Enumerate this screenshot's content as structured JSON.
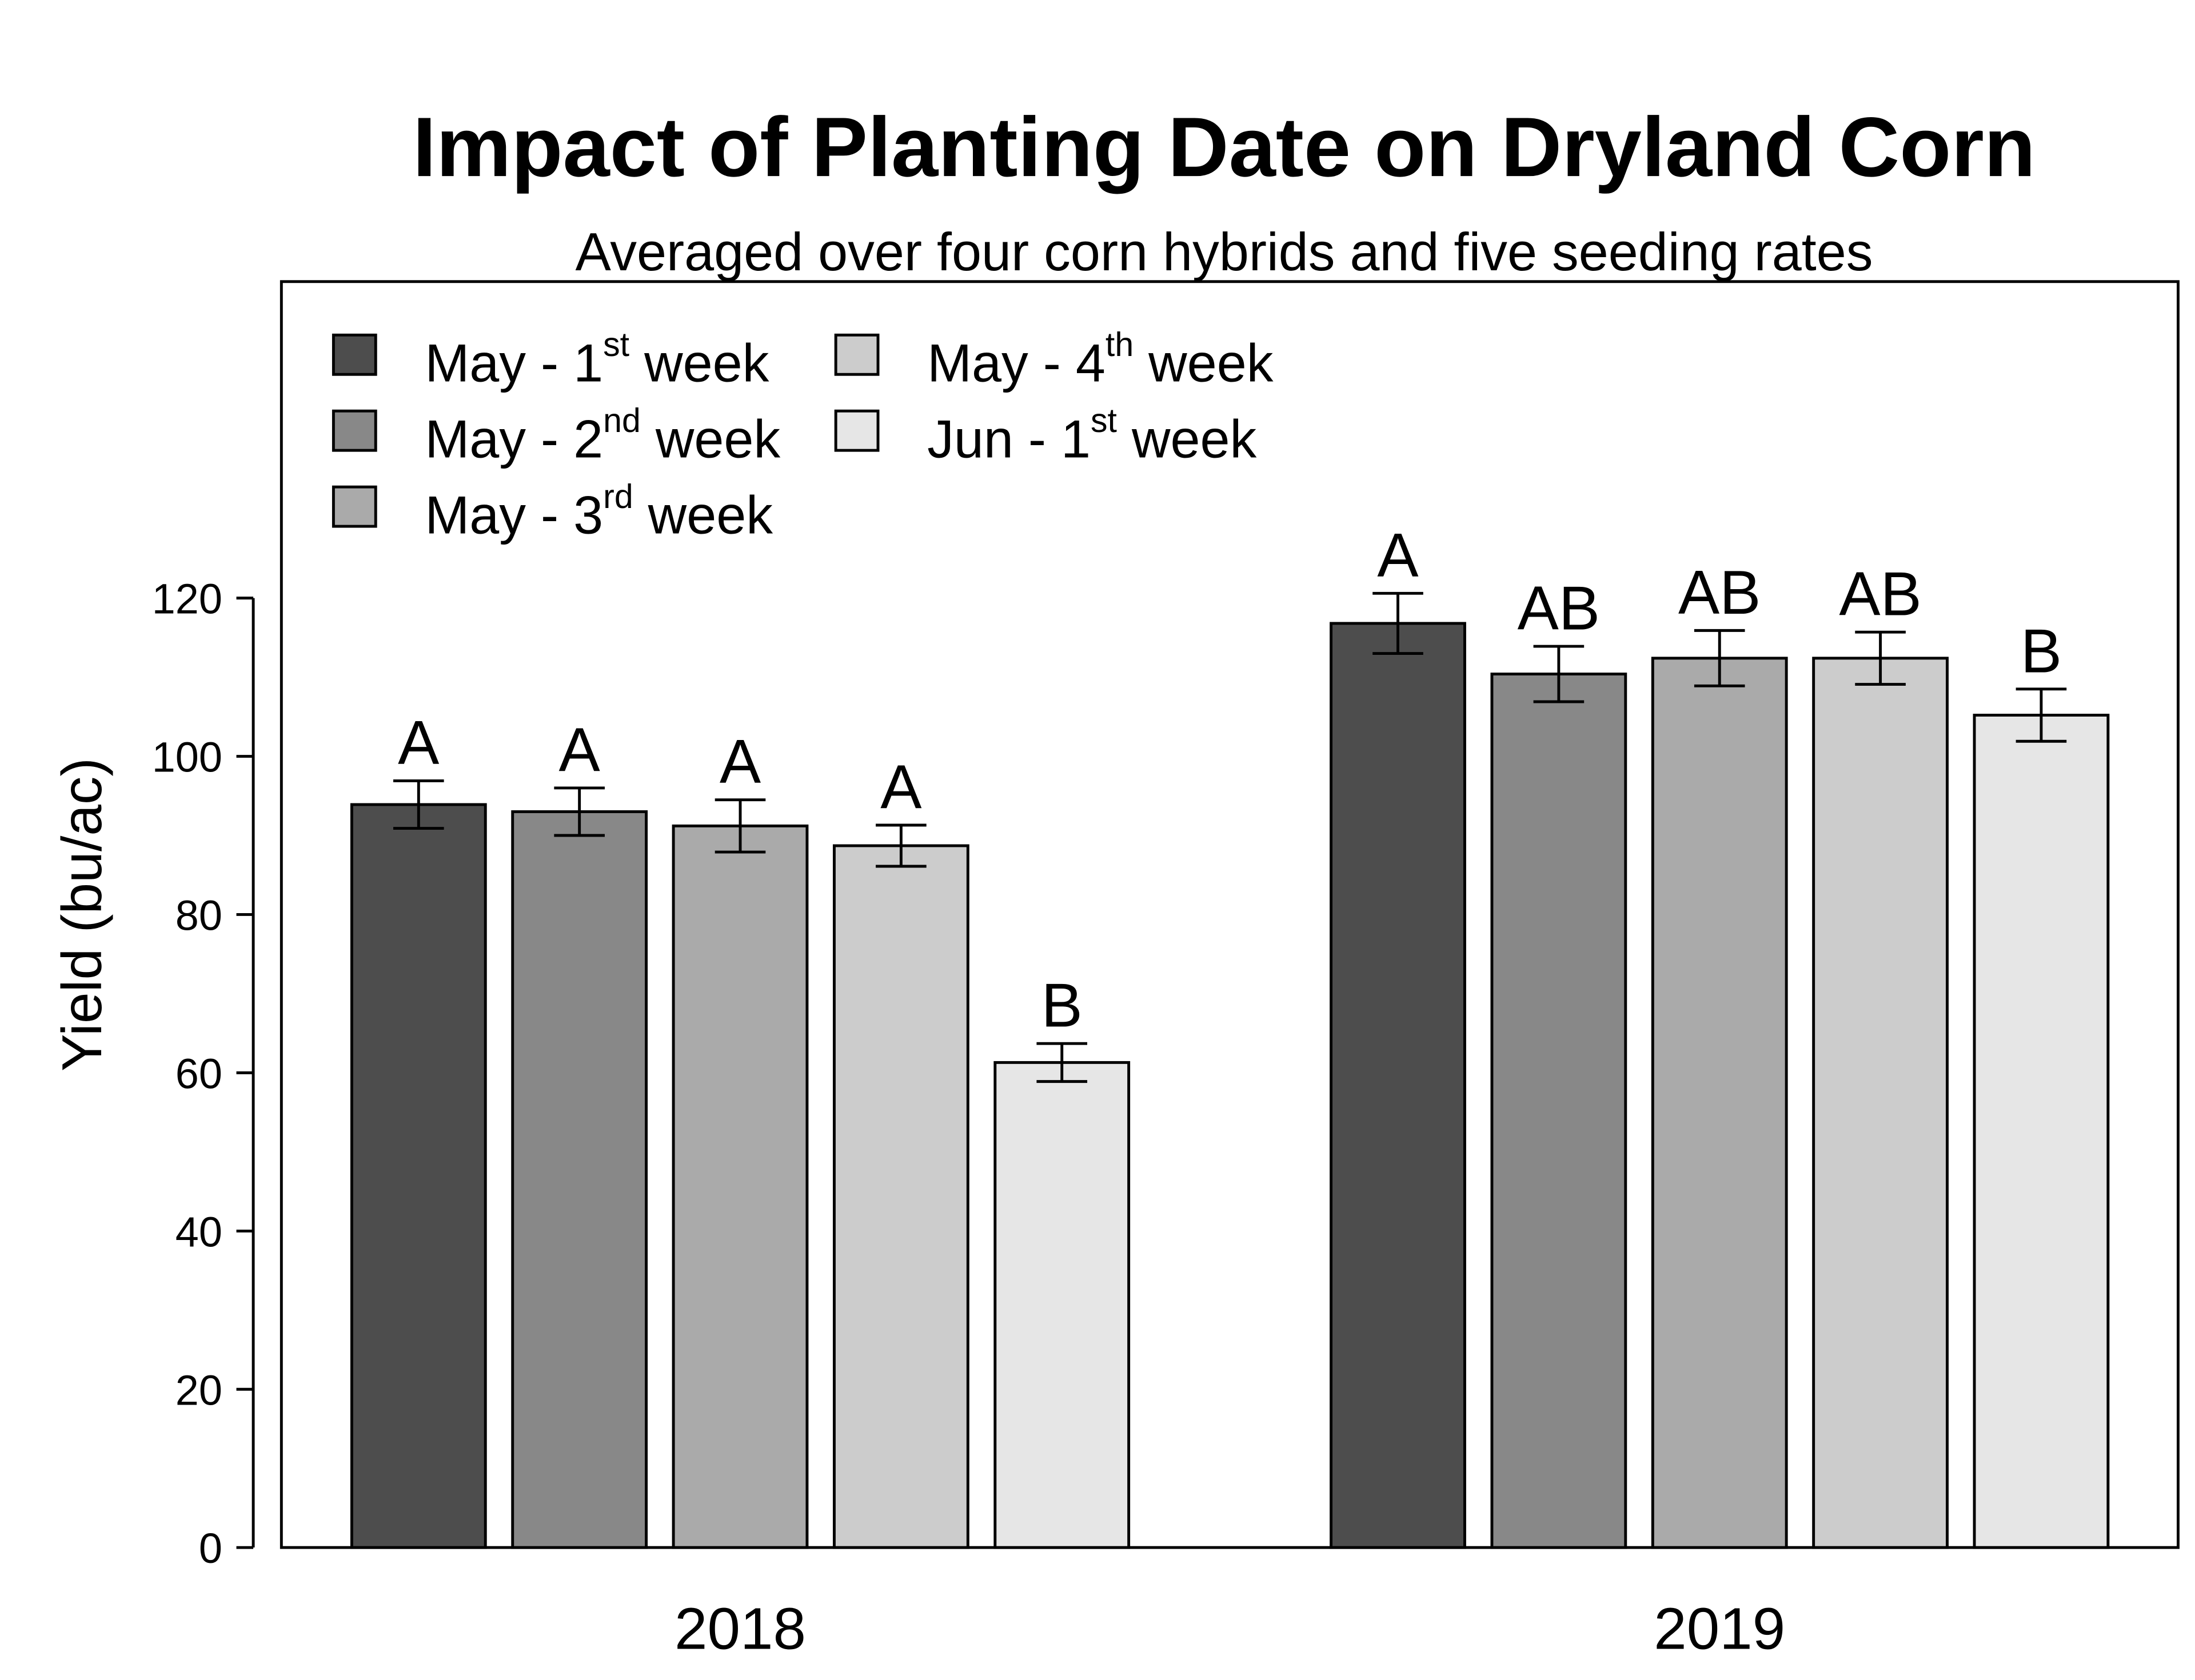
{
  "chart_data": {
    "type": "bar",
    "title": "Impact of Planting Date on Dryland Corn",
    "subtitle": "Averaged over four corn hybrids and five seeding rates",
    "xlabel": "",
    "ylabel": "Yield (bu/ac)",
    "ylim": [
      0,
      160
    ],
    "yticks": [
      "0",
      "20",
      "40",
      "60",
      "80",
      "100",
      "120"
    ],
    "grid": false,
    "legend_placement": "top-left",
    "categories": [
      "2018",
      "2019"
    ],
    "series": [
      {
        "name": "May - 1st week",
        "legend": [
          "May - 1",
          "st",
          " week"
        ],
        "color": "#4d4d4d",
        "values": [
          93.9,
          116.8
        ],
        "errors": [
          3.0,
          3.8
        ],
        "letters": [
          "A",
          "A"
        ]
      },
      {
        "name": "May - 2nd week",
        "legend": [
          "May - 2",
          "nd",
          " week"
        ],
        "color": "#888888",
        "values": [
          93.0,
          110.4
        ],
        "errors": [
          3.0,
          3.5
        ],
        "letters": [
          "A",
          "AB"
        ]
      },
      {
        "name": "May - 3rd week",
        "legend": [
          "May - 3",
          "rd",
          " week"
        ],
        "color": "#aaaaaa",
        "values": [
          91.2,
          112.4
        ],
        "errors": [
          3.3,
          3.5
        ],
        "letters": [
          "A",
          "AB"
        ]
      },
      {
        "name": "May - 4th week",
        "legend": [
          "May - 4",
          "th",
          " week"
        ],
        "color": "#cccccc",
        "values": [
          88.7,
          112.4
        ],
        "errors": [
          2.6,
          3.3
        ],
        "letters": [
          "A",
          "AB"
        ]
      },
      {
        "name": "Jun - 1st week",
        "legend": [
          "Jun - 1",
          "st",
          " week"
        ],
        "color": "#e6e6e6",
        "values": [
          61.3,
          105.2
        ],
        "errors": [
          2.4,
          3.3
        ],
        "letters": [
          "B",
          "B"
        ]
      }
    ]
  }
}
